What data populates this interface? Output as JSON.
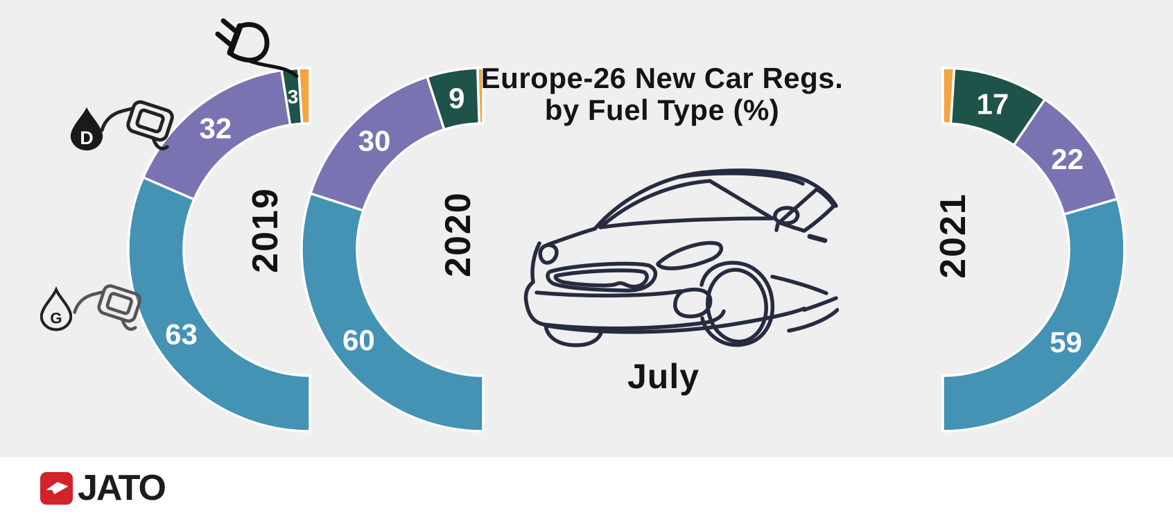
{
  "title": {
    "line1": "Europe-26 New Car Regs.",
    "line2": "by Fuel Type (%)"
  },
  "month": "July",
  "logo": {
    "name": "JATO"
  },
  "fuel_icons": {
    "diesel_letter": "D",
    "gasoline_letter": "G"
  },
  "colors": {
    "background": "#efeff0",
    "gasoline_blue": "#4492b4",
    "diesel_purple": "#7a73b1",
    "electric_green": "#1d5349",
    "other_orange": "#f6a340",
    "text_dark": "#141414",
    "car_line": "#262b40",
    "jato_red": "#d2232a"
  },
  "chart_data": [
    {
      "type": "pie",
      "variant": "half-donut",
      "year": "2019",
      "open_side": "right",
      "unit": "%",
      "segments": [
        {
          "fuel": "other",
          "value": 2,
          "label": "",
          "color": "#f6a340"
        },
        {
          "fuel": "electric",
          "value": 3,
          "label": "3",
          "color": "#1d5349"
        },
        {
          "fuel": "diesel",
          "value": 32,
          "label": "32",
          "color": "#7a73b1"
        },
        {
          "fuel": "gasoline",
          "value": 63,
          "label": "63",
          "color": "#4492b4"
        }
      ]
    },
    {
      "type": "pie",
      "variant": "half-donut",
      "year": "2020",
      "open_side": "right",
      "unit": "%",
      "segments": [
        {
          "fuel": "other",
          "value": 1,
          "label": "",
          "color": "#f6a340"
        },
        {
          "fuel": "electric",
          "value": 9,
          "label": "9",
          "color": "#1d5349"
        },
        {
          "fuel": "diesel",
          "value": 30,
          "label": "30",
          "color": "#7a73b1"
        },
        {
          "fuel": "gasoline",
          "value": 60,
          "label": "60",
          "color": "#4492b4"
        }
      ]
    },
    {
      "type": "pie",
      "variant": "half-donut",
      "year": "2021",
      "open_side": "left",
      "unit": "%",
      "segments": [
        {
          "fuel": "other",
          "value": 2,
          "label": "",
          "color": "#f6a340"
        },
        {
          "fuel": "electric",
          "value": 17,
          "label": "17",
          "color": "#1d5349"
        },
        {
          "fuel": "diesel",
          "value": 22,
          "label": "22",
          "color": "#7a73b1"
        },
        {
          "fuel": "gasoline",
          "value": 59,
          "label": "59",
          "color": "#4492b4"
        }
      ]
    }
  ]
}
